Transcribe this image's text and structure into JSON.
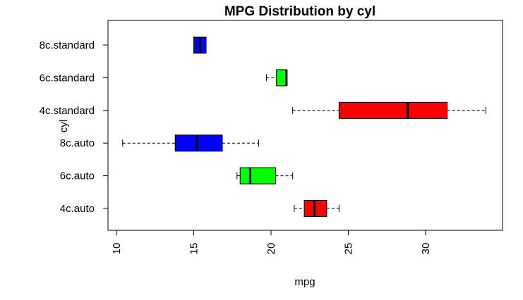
{
  "chart_data": {
    "type": "boxplot",
    "orientation": "horizontal",
    "title": "MPG Distribution by cyl",
    "xlabel": "mpg",
    "ylabel": "cyl",
    "xlim": [
      10,
      35
    ],
    "xticks": [
      10,
      15,
      20,
      25,
      30
    ],
    "grid": false,
    "categories": [
      "4c.auto",
      "6c.auto",
      "8c.auto",
      "4c.standard",
      "6c.standard",
      "8c.standard"
    ],
    "boxes": [
      {
        "category": "4c.auto",
        "min": 21.5,
        "q1": 22.15,
        "median": 22.8,
        "q3": 23.6,
        "max": 24.4,
        "color": "#ff0000"
      },
      {
        "category": "6c.auto",
        "min": 17.8,
        "q1": 18.0,
        "median": 18.65,
        "q3": 20.3,
        "max": 21.4,
        "color": "#00ff00"
      },
      {
        "category": "8c.auto",
        "min": 10.4,
        "q1": 13.8,
        "median": 15.2,
        "q3": 16.85,
        "max": 19.2,
        "color": "#0000ff"
      },
      {
        "category": "4c.standard",
        "min": 21.4,
        "q1": 24.4,
        "median": 28.85,
        "q3": 31.4,
        "max": 33.9,
        "color": "#ff0000"
      },
      {
        "category": "6c.standard",
        "min": 19.7,
        "q1": 20.35,
        "median": 21.0,
        "q3": 21.0,
        "max": 21.0,
        "color": "#00ff00"
      },
      {
        "category": "8c.standard",
        "min": 15.0,
        "q1": 15.0,
        "median": 15.4,
        "q3": 15.8,
        "max": 15.8,
        "color": "#0000ff"
      }
    ]
  }
}
